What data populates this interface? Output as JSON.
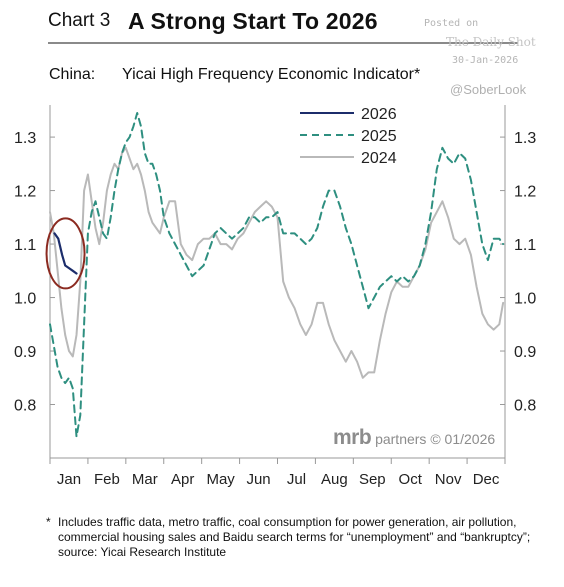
{
  "header": {
    "chart_number": "Chart 3",
    "title": "A Strong Start To 2026"
  },
  "watermark": {
    "posted_on": "Posted on",
    "site": "The Daily Shot",
    "date": "30-Jan-2026",
    "handle": "@SoberLook"
  },
  "subtitle": {
    "region": "China:",
    "name": "Yicai High Frequency Economic Indicator*"
  },
  "credit": {
    "brand": "mrb",
    "text": " partners © 01/2026"
  },
  "footnote": {
    "star": "*",
    "text": "Includes traffic data, metro traffic, coal consumption for power generation, air pollution,\n commercial housing sales and Baidu search terms for “unemployment” and “bankruptcy”;\n source: Yicai Research Institute"
  },
  "colors": {
    "series_2026": "#1c2d6b",
    "series_2025": "#2e8f80",
    "series_2024": "#b9b9b9",
    "highlight_ellipse": "#8b2a20",
    "axis": "#999999"
  },
  "chart_data": {
    "type": "line",
    "xlabel": "",
    "ylabel": "",
    "xlim": [
      0,
      12
    ],
    "ylim": [
      0.7,
      1.36
    ],
    "x_ticks": [
      "Jan",
      "Feb",
      "Mar",
      "Apr",
      "May",
      "Jun",
      "Jul",
      "Aug",
      "Sep",
      "Oct",
      "Nov",
      "Dec"
    ],
    "y_ticks": [
      "1.3",
      "1.2",
      "1.1",
      "1.0",
      "0.9",
      "0.8"
    ],
    "y_tick_values": [
      1.3,
      1.2,
      1.1,
      1.0,
      0.9,
      0.8
    ],
    "legend_position": "top-center",
    "highlight": "2026 series circled",
    "series": [
      {
        "name": "2026",
        "style": "solid",
        "x": [
          0.12,
          0.22,
          0.32,
          0.4,
          0.5,
          0.6,
          0.7
        ],
        "y": [
          1.12,
          1.11,
          1.08,
          1.06,
          1.055,
          1.05,
          1.045
        ]
      },
      {
        "name": "2025",
        "style": "dashed",
        "x": [
          0.0,
          0.1,
          0.2,
          0.3,
          0.4,
          0.5,
          0.6,
          0.7,
          0.8,
          0.9,
          1.0,
          1.1,
          1.2,
          1.3,
          1.4,
          1.5,
          1.6,
          1.7,
          1.8,
          1.9,
          2.0,
          2.1,
          2.2,
          2.3,
          2.4,
          2.5,
          2.6,
          2.7,
          2.8,
          2.9,
          3.0,
          3.15,
          3.3,
          3.45,
          3.6,
          3.75,
          3.9,
          4.05,
          4.2,
          4.35,
          4.5,
          4.65,
          4.8,
          4.95,
          5.1,
          5.25,
          5.4,
          5.55,
          5.7,
          5.85,
          6.0,
          6.15,
          6.3,
          6.45,
          6.6,
          6.75,
          6.9,
          7.05,
          7.2,
          7.35,
          7.5,
          7.65,
          7.8,
          7.95,
          8.1,
          8.25,
          8.4,
          8.55,
          8.7,
          8.85,
          9.0,
          9.15,
          9.3,
          9.45,
          9.6,
          9.75,
          9.9,
          10.05,
          10.2,
          10.35,
          10.5,
          10.65,
          10.8,
          10.95,
          11.1,
          11.25,
          11.4,
          11.55,
          11.7,
          11.85,
          11.95
        ],
        "y": [
          0.95,
          0.91,
          0.87,
          0.85,
          0.84,
          0.85,
          0.83,
          0.74,
          0.78,
          0.95,
          1.12,
          1.16,
          1.18,
          1.15,
          1.12,
          1.11,
          1.15,
          1.2,
          1.24,
          1.27,
          1.29,
          1.3,
          1.32,
          1.345,
          1.32,
          1.27,
          1.25,
          1.25,
          1.23,
          1.2,
          1.15,
          1.12,
          1.1,
          1.08,
          1.06,
          1.04,
          1.05,
          1.06,
          1.09,
          1.12,
          1.13,
          1.12,
          1.11,
          1.12,
          1.13,
          1.15,
          1.15,
          1.14,
          1.15,
          1.15,
          1.16,
          1.12,
          1.12,
          1.12,
          1.11,
          1.1,
          1.11,
          1.13,
          1.17,
          1.2,
          1.2,
          1.17,
          1.13,
          1.1,
          1.06,
          1.02,
          0.98,
          1.0,
          1.02,
          1.03,
          1.04,
          1.03,
          1.04,
          1.03,
          1.04,
          1.06,
          1.1,
          1.16,
          1.24,
          1.28,
          1.26,
          1.25,
          1.27,
          1.26,
          1.22,
          1.16,
          1.1,
          1.07,
          1.11,
          1.11,
          1.1
        ]
      },
      {
        "name": "2024",
        "style": "solid",
        "x": [
          0.0,
          0.1,
          0.2,
          0.3,
          0.4,
          0.5,
          0.6,
          0.7,
          0.8,
          0.9,
          1.0,
          1.1,
          1.2,
          1.3,
          1.4,
          1.5,
          1.6,
          1.7,
          1.8,
          1.9,
          2.0,
          2.1,
          2.2,
          2.3,
          2.4,
          2.5,
          2.6,
          2.7,
          2.8,
          2.9,
          3.0,
          3.15,
          3.3,
          3.45,
          3.6,
          3.75,
          3.9,
          4.05,
          4.2,
          4.35,
          4.5,
          4.65,
          4.8,
          4.95,
          5.1,
          5.25,
          5.4,
          5.55,
          5.7,
          5.85,
          6.0,
          6.15,
          6.3,
          6.45,
          6.6,
          6.75,
          6.9,
          7.05,
          7.2,
          7.35,
          7.5,
          7.65,
          7.8,
          7.95,
          8.1,
          8.25,
          8.4,
          8.55,
          8.7,
          8.85,
          9.0,
          9.15,
          9.3,
          9.45,
          9.6,
          9.75,
          9.9,
          10.05,
          10.2,
          10.35,
          10.5,
          10.65,
          10.8,
          10.95,
          11.1,
          11.25,
          11.4,
          11.55,
          11.7,
          11.85,
          11.95
        ],
        "y": [
          1.16,
          1.12,
          1.05,
          0.98,
          0.93,
          0.9,
          0.89,
          0.93,
          1.03,
          1.2,
          1.23,
          1.18,
          1.13,
          1.1,
          1.14,
          1.2,
          1.23,
          1.25,
          1.24,
          1.27,
          1.28,
          1.26,
          1.24,
          1.25,
          1.23,
          1.2,
          1.16,
          1.14,
          1.13,
          1.12,
          1.15,
          1.18,
          1.18,
          1.1,
          1.08,
          1.07,
          1.1,
          1.11,
          1.11,
          1.12,
          1.1,
          1.1,
          1.09,
          1.11,
          1.12,
          1.14,
          1.16,
          1.17,
          1.18,
          1.17,
          1.15,
          1.03,
          1.0,
          0.98,
          0.95,
          0.93,
          0.95,
          0.99,
          0.99,
          0.95,
          0.92,
          0.9,
          0.88,
          0.9,
          0.88,
          0.85,
          0.86,
          0.86,
          0.92,
          0.97,
          1.01,
          1.03,
          1.02,
          1.02,
          1.04,
          1.06,
          1.09,
          1.14,
          1.16,
          1.18,
          1.15,
          1.11,
          1.1,
          1.11,
          1.08,
          1.02,
          0.97,
          0.95,
          0.94,
          0.95,
          0.99
        ]
      }
    ]
  }
}
